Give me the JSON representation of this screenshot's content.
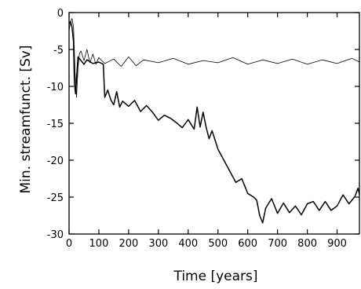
{
  "chart_data": {
    "type": "line",
    "xlabel": "Time [years]",
    "ylabel": "Min. streamfunct. [Sv]",
    "xlim": [
      0,
      975
    ],
    "ylim": [
      -30,
      0
    ],
    "xticks": [
      0,
      100,
      200,
      300,
      400,
      500,
      600,
      700,
      800,
      900
    ],
    "xtick_labels": [
      "0",
      "100",
      "200",
      "300",
      "400",
      "500",
      "600",
      "700",
      "800",
      "900"
    ],
    "yticks": [
      0,
      -5,
      -10,
      -15,
      -20,
      -25,
      -30
    ],
    "ytick_labels": [
      "0",
      "-5",
      "-10",
      "-15",
      "-20",
      "-25",
      "-30"
    ],
    "grid": false,
    "series": [
      {
        "style": "thin",
        "color": "#000000",
        "x": [
          0,
          5,
          10,
          15,
          20,
          25,
          30,
          35,
          40,
          50,
          60,
          70,
          80,
          90,
          100,
          120,
          150,
          175,
          200,
          225,
          250,
          300,
          350,
          400,
          450,
          500,
          550,
          600,
          650,
          700,
          750,
          800,
          850,
          900,
          950,
          975
        ],
        "values": [
          -2.5,
          -1.2,
          -0.8,
          -2.0,
          -8.0,
          -11.5,
          -7.5,
          -5.5,
          -5.2,
          -6.5,
          -5.0,
          -6.8,
          -5.6,
          -7.0,
          -6.1,
          -6.9,
          -6.3,
          -7.3,
          -6.0,
          -7.2,
          -6.4,
          -6.8,
          -6.2,
          -7.0,
          -6.5,
          -6.8,
          -6.1,
          -7.0,
          -6.4,
          -6.9,
          -6.3,
          -7.0,
          -6.4,
          -6.9,
          -6.2,
          -6.7
        ]
      },
      {
        "style": "thick",
        "color": "#000000",
        "x": [
          0,
          5,
          10,
          15,
          18,
          22,
          25,
          30,
          40,
          50,
          60,
          80,
          100,
          115,
          120,
          130,
          140,
          150,
          160,
          170,
          180,
          200,
          220,
          240,
          260,
          280,
          300,
          320,
          340,
          360,
          380,
          400,
          420,
          430,
          440,
          450,
          460,
          470,
          480,
          500,
          520,
          540,
          560,
          580,
          600,
          620,
          630,
          640,
          650,
          660,
          680,
          700,
          720,
          740,
          760,
          780,
          800,
          820,
          840,
          860,
          880,
          900,
          920,
          940,
          960,
          970,
          975
        ],
        "values": [
          -1.5,
          -1.2,
          -2.0,
          -4.0,
          -9.5,
          -11.0,
          -9.0,
          -6.0,
          -6.5,
          -7.0,
          -6.4,
          -6.9,
          -6.7,
          -7.0,
          -11.5,
          -10.5,
          -11.8,
          -12.5,
          -10.7,
          -12.8,
          -12.0,
          -12.7,
          -11.9,
          -13.4,
          -12.6,
          -13.5,
          -14.6,
          -13.9,
          -14.3,
          -14.9,
          -15.6,
          -14.5,
          -15.8,
          -12.8,
          -15.5,
          -13.5,
          -15.5,
          -17.1,
          -16.0,
          -18.5,
          -20.0,
          -21.5,
          -23.0,
          -22.5,
          -24.5,
          -25.0,
          -25.4,
          -27.5,
          -28.5,
          -26.5,
          -25.2,
          -27.2,
          -25.8,
          -27.1,
          -26.2,
          -27.4,
          -25.9,
          -25.6,
          -26.8,
          -25.6,
          -26.8,
          -26.2,
          -24.7,
          -25.9,
          -24.9,
          -23.8,
          -24.6
        ]
      }
    ]
  }
}
